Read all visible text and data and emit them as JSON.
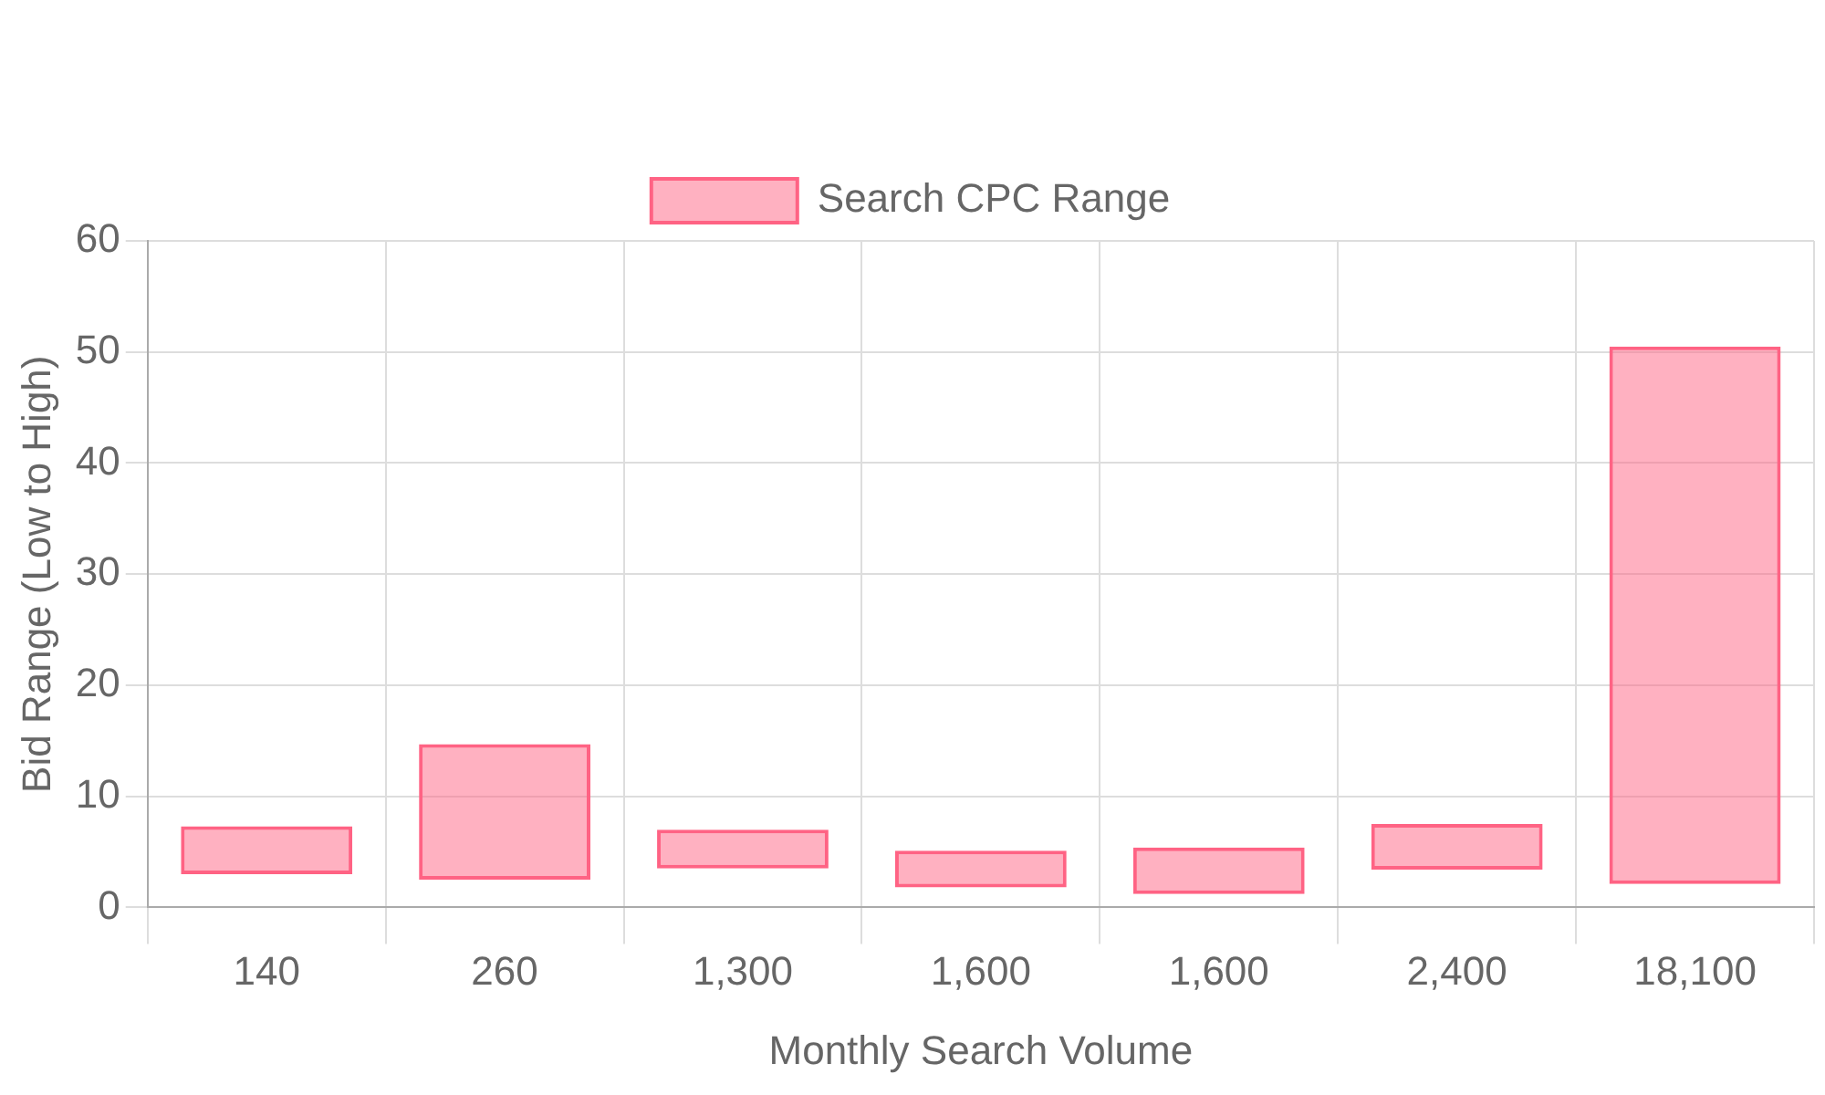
{
  "chart_data": {
    "type": "bar",
    "xlabel": "Monthly Search Volume",
    "ylabel": "Bid Range (Low to High)",
    "categories": [
      "140",
      "260",
      "1,300",
      "1,600",
      "1,600",
      "2,400",
      "18,100"
    ],
    "series": [
      {
        "name": "Search CPC Range",
        "color": "#ff6384",
        "values": [
          4.3,
          12.2,
          3.5,
          3.3,
          4.2,
          4.1,
          48.4
        ],
        "base": [
          3.0,
          2.5,
          3.5,
          1.8,
          1.2,
          3.4,
          2.1
        ]
      }
    ],
    "ylim": [
      0,
      60
    ],
    "yticks": [
      0,
      10,
      20,
      30,
      40,
      50,
      60
    ],
    "grid": true,
    "legend": "top"
  }
}
